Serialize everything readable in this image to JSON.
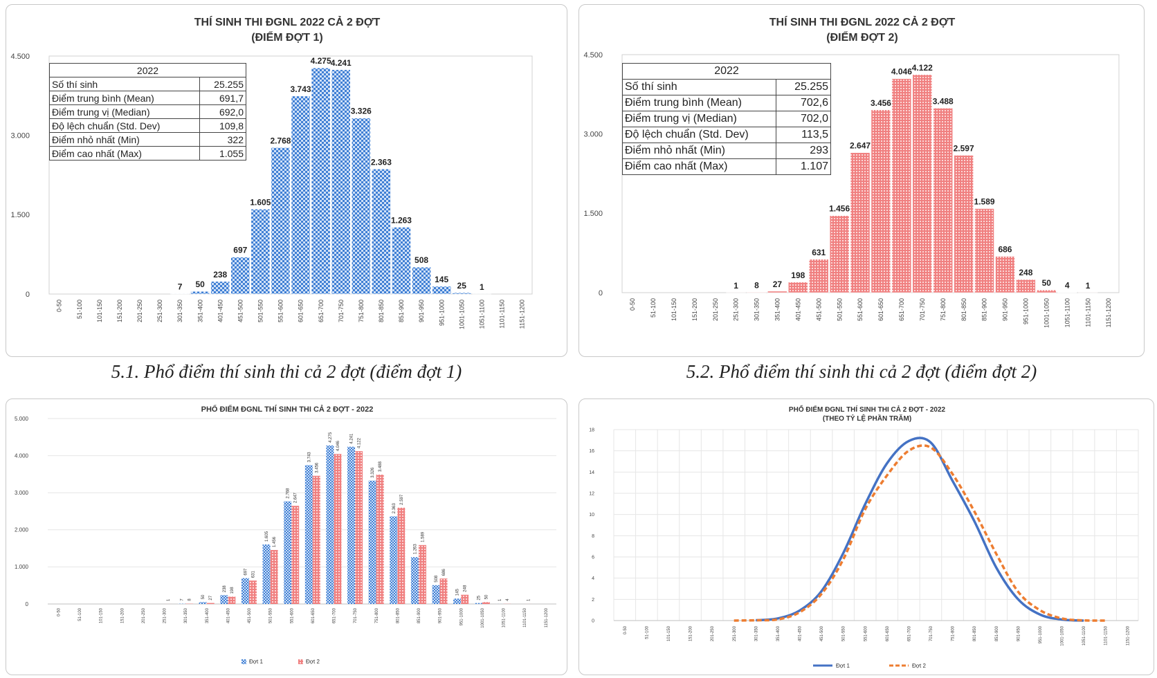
{
  "colors": {
    "blue_bar": "#3f7fd4",
    "blue_bar_light": "#cfe0f7",
    "red_bar": "#f08080",
    "red_bar_light": "#fbd8d8",
    "line_blue": "#4472c4",
    "line_orange": "#ed7d31",
    "grid": "#e6e6e6"
  },
  "captions": {
    "chart1": "5.1. Phổ điểm thí sinh thi cả 2 đợt (điểm đợt 1)",
    "chart2": "5.2. Phổ điểm thí sinh thi cả 2 đợt (điểm đợt 2)"
  },
  "tables": {
    "dot1": {
      "year": "2022",
      "rows": [
        {
          "label": "Số thí sinh",
          "value": "25.255"
        },
        {
          "label": "Điểm trung bình (Mean)",
          "value": "691,7"
        },
        {
          "label": "Điểm trung vị (Median)",
          "value": "692,0"
        },
        {
          "label": "Độ lệch chuẩn (Std. Dev)",
          "value": "109,8"
        },
        {
          "label": "Điểm nhỏ nhất (Min)",
          "value": "322"
        },
        {
          "label": "Điểm cao nhất (Max)",
          "value": "1.055"
        }
      ]
    },
    "dot2": {
      "year": "2022",
      "rows": [
        {
          "label": "Số thí sinh",
          "value": "25.255"
        },
        {
          "label": "Điểm trung bình (Mean)",
          "value": "702,6"
        },
        {
          "label": "Điểm trung vị (Median)",
          "value": "702,0"
        },
        {
          "label": "Độ lệch chuẩn (Std. Dev)",
          "value": "113,5"
        },
        {
          "label": "Điểm nhỏ nhất (Min)",
          "value": "293"
        },
        {
          "label": "Điểm cao nhất (Max)",
          "value": "1.107"
        }
      ]
    }
  },
  "chart_data": [
    {
      "type": "bar",
      "title": [
        "THÍ SINH THI ĐGNL 2022 CẢ 2 ĐỢT",
        "(ĐIỂM ĐỢT 1)"
      ],
      "categories": [
        "0-50",
        "51-100",
        "101-150",
        "151-200",
        "201-250",
        "251-300",
        "301-350",
        "351-400",
        "401-450",
        "451-500",
        "501-550",
        "551-600",
        "601-650",
        "651-700",
        "701-750",
        "751-800",
        "801-850",
        "851-900",
        "901-950",
        "951-1000",
        "1001-1050",
        "1051-1100",
        "1101-1150",
        "1151-1200"
      ],
      "values": [
        null,
        null,
        null,
        null,
        null,
        null,
        7,
        50,
        238,
        697,
        1605,
        2768,
        3743,
        4275,
        4241,
        3326,
        2363,
        1263,
        508,
        145,
        25,
        1,
        null,
        null
      ],
      "value_labels": [
        "",
        "",
        "",
        "",
        "",
        "",
        "7",
        "50",
        "238",
        "697",
        "1.605",
        "2.768",
        "3.743",
        "4.275",
        "4.241",
        "3.326",
        "2.363",
        "1.263",
        "508",
        "145",
        "25",
        "1",
        "",
        ""
      ],
      "yticks": [
        "0",
        "1.500",
        "3.000",
        "4.500"
      ],
      "ylim": [
        0,
        4500
      ],
      "xlabel": "",
      "ylabel": ""
    },
    {
      "type": "bar",
      "title": [
        "THÍ SINH THI ĐGNL 2022 CẢ 2 ĐỢT",
        "(ĐIỂM ĐỢT 2)"
      ],
      "categories": [
        "0-50",
        "51-100",
        "101-150",
        "151-200",
        "201-250",
        "251-300",
        "301-350",
        "351-400",
        "401-450",
        "451-500",
        "501-550",
        "551-600",
        "601-650",
        "651-700",
        "701-750",
        "751-800",
        "801-850",
        "851-900",
        "901-950",
        "951-1000",
        "1001-1050",
        "1051-1100",
        "1101-1150",
        "1151-1200"
      ],
      "values": [
        null,
        null,
        null,
        null,
        null,
        1,
        8,
        27,
        198,
        631,
        1456,
        2647,
        3456,
        4046,
        4122,
        3488,
        2597,
        1589,
        686,
        248,
        50,
        4,
        1,
        null
      ],
      "value_labels": [
        "",
        "",
        "",
        "",
        "",
        "1",
        "8",
        "27",
        "198",
        "631",
        "1.456",
        "2.647",
        "3.456",
        "4.046",
        "4.122",
        "3.488",
        "2.597",
        "1.589",
        "686",
        "248",
        "50",
        "4",
        "1",
        ""
      ],
      "yticks": [
        "0",
        "1.500",
        "3.000",
        "4.500"
      ],
      "ylim": [
        0,
        4500
      ],
      "xlabel": "",
      "ylabel": ""
    },
    {
      "type": "bar",
      "title": [
        "PHỔ ĐIỂM ĐGNL THÍ SINH THI CẢ 2 ĐỢT - 2022"
      ],
      "categories": [
        "0-50",
        "51-100",
        "101-150",
        "151-200",
        "201-250",
        "251-300",
        "301-350",
        "351-400",
        "401-450",
        "451-500",
        "501-550",
        "551-600",
        "601-650",
        "651-700",
        "701-750",
        "751-800",
        "801-850",
        "851-900",
        "901-950",
        "951-1000",
        "1001-1050",
        "1051-1100",
        "1101-1150",
        "1151-1200"
      ],
      "series": [
        {
          "name": "Đợt 1",
          "values": [
            null,
            null,
            null,
            null,
            null,
            null,
            7,
            50,
            238,
            697,
            1605,
            2768,
            3743,
            4275,
            4241,
            3326,
            2363,
            1263,
            508,
            145,
            25,
            1,
            null,
            null
          ],
          "value_labels": [
            "",
            "",
            "",
            "",
            "",
            "",
            "7",
            "50",
            "238",
            "697",
            "1.605",
            "2.768",
            "3.743",
            "4.275",
            "4.241",
            "3.326",
            "2.363",
            "1.263",
            "508",
            "145",
            "25",
            "1",
            "",
            ""
          ]
        },
        {
          "name": "Đợt 2",
          "values": [
            null,
            null,
            null,
            null,
            null,
            1,
            8,
            27,
            198,
            631,
            1456,
            2647,
            3456,
            4046,
            4122,
            3488,
            2597,
            1589,
            686,
            248,
            50,
            4,
            1,
            null
          ],
          "value_labels": [
            "",
            "",
            "",
            "",
            "",
            "1",
            "8",
            "27",
            "198",
            "631",
            "1.456",
            "2.647",
            "3.456",
            "4.046",
            "4.122",
            "3.488",
            "2.597",
            "1.589",
            "686",
            "248",
            "50",
            "4",
            "1",
            ""
          ]
        }
      ],
      "yticks": [
        "0",
        "1.000",
        "2.000",
        "3.000",
        "4.000",
        "5.000"
      ],
      "ylim": [
        0,
        5000
      ],
      "legend": "bottom",
      "xlabel": "",
      "ylabel": ""
    },
    {
      "type": "line",
      "title": [
        "PHỔ ĐIỂM ĐGNL THÍ SINH THI CẢ 2 ĐỢT - 2022",
        "(THEO TỶ LỆ PHẦN TRĂM)"
      ],
      "categories": [
        "0-50",
        "51-100",
        "101-150",
        "151-200",
        "201-250",
        "251-300",
        "301-350",
        "351-400",
        "401-450",
        "451-500",
        "501-550",
        "551-600",
        "601-650",
        "651-700",
        "701-750",
        "751-800",
        "801-850",
        "851-900",
        "901-950",
        "951-1000",
        "1001-1050",
        "1051-1100",
        "1101-1150",
        "1151-1200"
      ],
      "series": [
        {
          "name": "Đợt 1",
          "values": [
            null,
            null,
            null,
            null,
            null,
            null,
            0.03,
            0.2,
            0.94,
            2.76,
            6.36,
            10.96,
            14.82,
            16.93,
            16.79,
            13.17,
            9.36,
            5.0,
            2.01,
            0.57,
            0.1,
            0.0,
            null,
            null
          ]
        },
        {
          "name": "Đợt 2",
          "values": [
            null,
            null,
            null,
            null,
            null,
            0.0,
            0.03,
            0.11,
            0.78,
            2.5,
            5.77,
            10.48,
            13.68,
            16.02,
            16.32,
            13.81,
            10.28,
            6.29,
            2.72,
            0.98,
            0.2,
            0.02,
            0.0,
            null
          ]
        }
      ],
      "yticks": [
        "0",
        "2",
        "4",
        "6",
        "8",
        "10",
        "12",
        "14",
        "16",
        "18"
      ],
      "ylim": [
        0,
        18
      ],
      "legend": "bottom",
      "xlabel": "",
      "ylabel": ""
    }
  ]
}
